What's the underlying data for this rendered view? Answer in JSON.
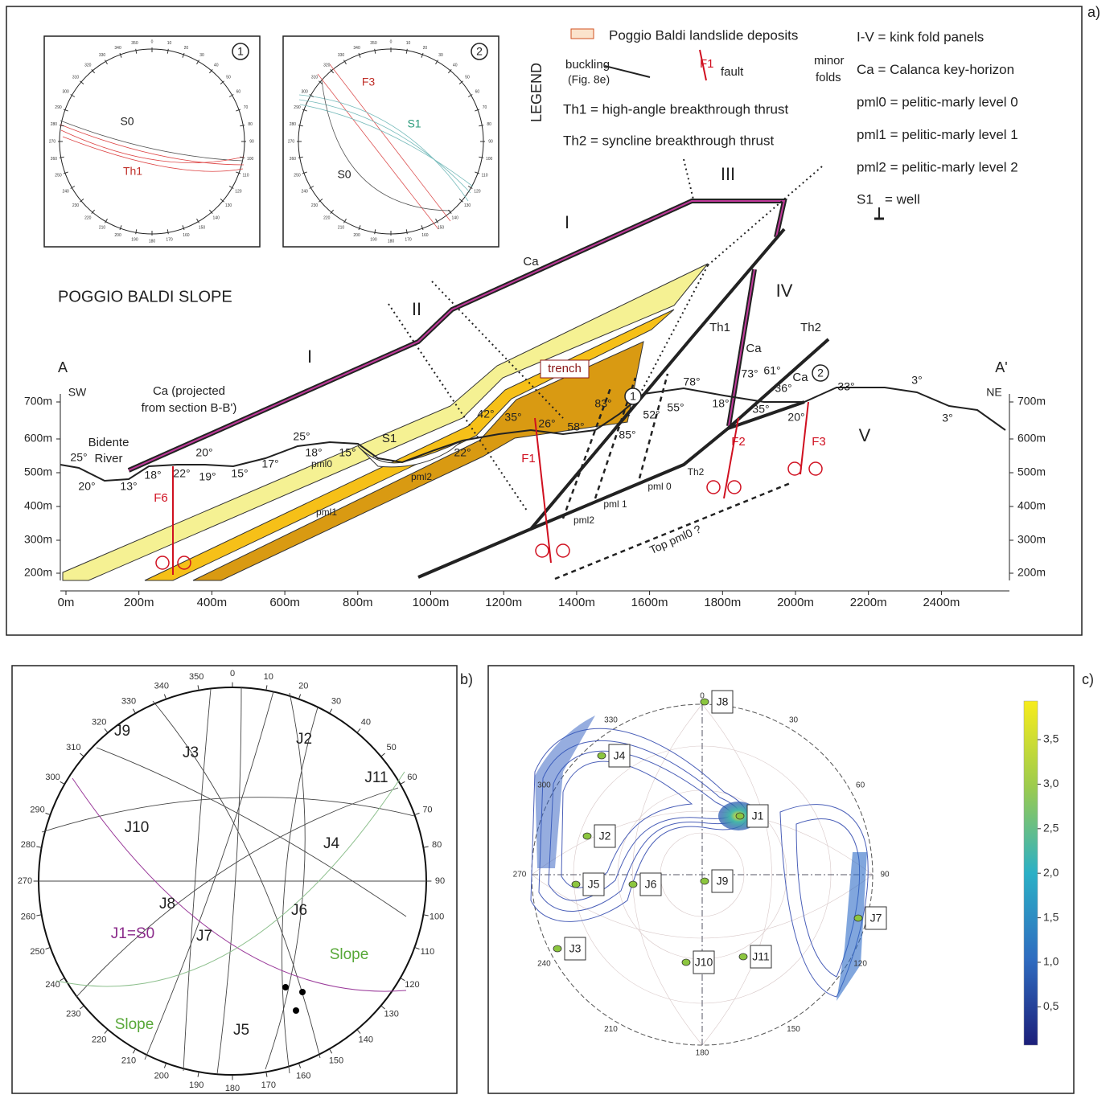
{
  "degree_ticks": [
    "0",
    "10",
    "20",
    "30",
    "40",
    "50",
    "60",
    "70",
    "80",
    "90",
    "100",
    "110",
    "120",
    "130",
    "140",
    "150",
    "160",
    "170",
    "180",
    "190",
    "200",
    "210",
    "220",
    "230",
    "240",
    "250",
    "260",
    "270",
    "280",
    "290",
    "300",
    "310",
    "320",
    "330",
    "340",
    "350"
  ],
  "panel_a": {
    "label": "a)",
    "legend": {
      "title": "LEGEND",
      "deposits": "Poggio Baldi landslide deposits",
      "buckling": [
        "buckling",
        "(Fig. 8e)"
      ],
      "fault_symbol": "F1",
      "fault": "fault",
      "minor_folds": [
        "minor",
        "folds"
      ],
      "th1": "Th1 = high-angle breakthrough thrust",
      "th2": "Th2 = syncline breakthrough thrust",
      "right": [
        "I-V = kink fold panels",
        "Ca = Calanca key-horizon",
        "pml0 = pelitic-marly level 0",
        "pml1 = pelitic-marly level 1",
        "pml2 = pelitic-marly level 2"
      ],
      "well": [
        "S1",
        "= well"
      ]
    },
    "inset_1": {
      "number": "1",
      "labels": [
        "S0",
        "Th1"
      ]
    },
    "inset_2": {
      "number": "2",
      "labels": [
        "F3",
        "S1",
        "S0"
      ]
    },
    "section": {
      "title": "POGGIO BALDI SLOPE",
      "yticks": [
        "700m",
        "600m",
        "500m",
        "400m",
        "300m",
        "200m"
      ],
      "xticks": [
        "0m",
        "200m",
        "400m",
        "600m",
        "800m",
        "1000m",
        "1200m",
        "1400m",
        "1600m",
        "1800m",
        "2000m",
        "2200m",
        "2400m"
      ],
      "annotations": [
        "A",
        "A'",
        "SW",
        "NE",
        "I",
        "I",
        "II",
        "III",
        "IV",
        "V",
        "Ca",
        "Ca",
        "Ca",
        "Ca (projected",
        "from section B-B')",
        "Bidente",
        "River",
        "25°",
        "20°",
        "13°",
        "18°",
        "22°",
        "20°",
        "19°",
        "15°",
        "17°",
        "25°",
        "18°",
        "15°",
        "22°",
        "42°",
        "35°",
        "26°",
        "58°",
        "83°",
        "85°",
        "52°",
        "55°",
        "78°",
        "18°",
        "73°",
        "61°",
        "36°",
        "35°",
        "20°",
        "33°",
        "3°",
        "3°",
        "S1",
        "pml0",
        "pml1",
        "pml2",
        "pml2",
        "pml 1",
        "pml 0",
        "trench",
        "Th1",
        "Th2",
        "Th2",
        "F1",
        "F2",
        "F3",
        "F6",
        "Top pml0 ?",
        "1",
        "2"
      ]
    }
  },
  "panel_b": {
    "label": "b)",
    "labels": [
      "J9",
      "J3",
      "J2",
      "J11",
      "J10",
      "J4",
      "J8",
      "J6",
      "J7",
      "J1=S0",
      "Slope",
      "Slope",
      "J5"
    ]
  },
  "panel_c": {
    "label": "c)",
    "ticks": [
      "0",
      "30",
      "60",
      "90",
      "120",
      "150",
      "180",
      "210",
      "240",
      "270",
      "300",
      "330"
    ],
    "points": [
      "J8",
      "J4",
      "J1",
      "J2",
      "J5",
      "J6",
      "J9",
      "J7",
      "J3",
      "J10",
      "J11"
    ],
    "colorbar": [
      "3,5",
      "3,0",
      "2,5",
      "2,0",
      "1,5",
      "1,0",
      "0,5"
    ]
  }
}
